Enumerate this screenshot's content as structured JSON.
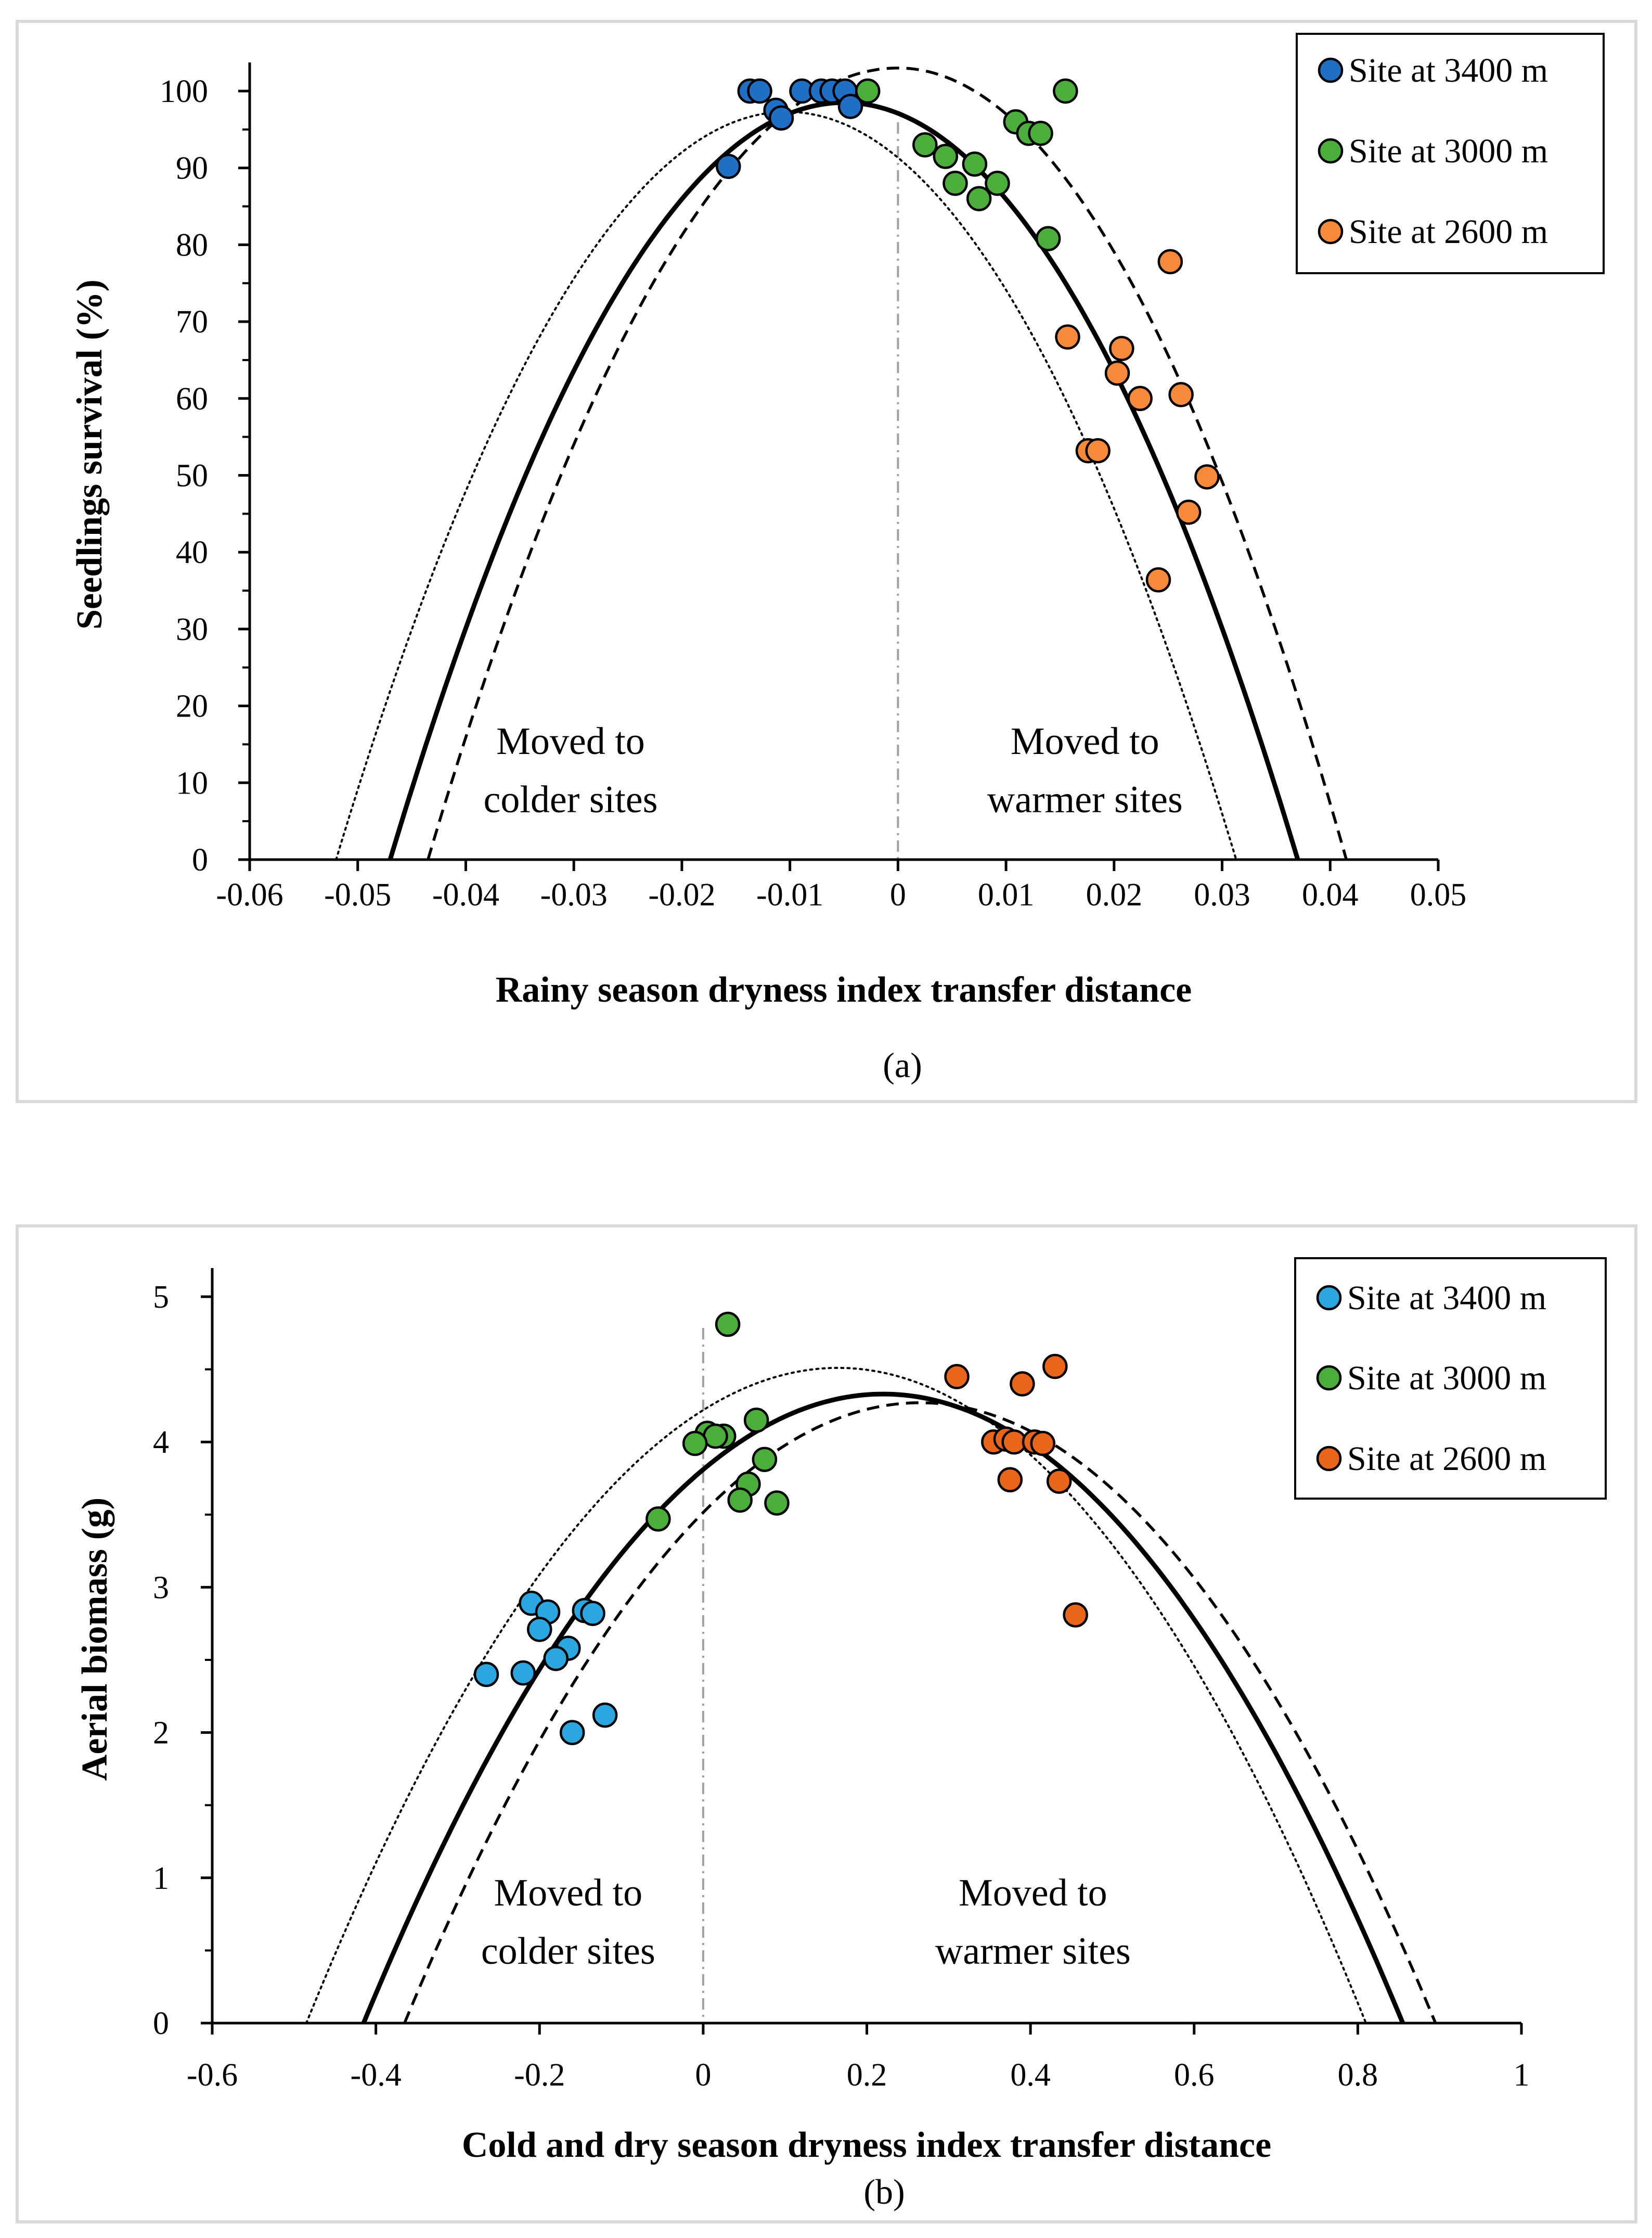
{
  "chart_data": [
    {
      "type": "scatter",
      "panel_label": "(a)",
      "xlabel": "Rainy season dryness index transfer distance",
      "ylabel": "Seedlings survival (%)",
      "xlim": [
        -0.06,
        0.05
      ],
      "ylim": [
        0,
        100
      ],
      "x_ticks": [
        -0.06,
        -0.05,
        -0.04,
        -0.03,
        -0.02,
        -0.01,
        0,
        0.01,
        0.02,
        0.03,
        0.04,
        0.05
      ],
      "x_tick_labels": [
        "-0.06",
        "-0.05",
        "-0.04",
        "-0.03",
        "-0.02",
        "-0.01",
        "0",
        "0.01",
        "0.02",
        "0.03",
        "0.04",
        "0.05"
      ],
      "y_ticks": [
        0,
        10,
        20,
        30,
        40,
        50,
        60,
        70,
        80,
        90,
        100
      ],
      "y_tick_labels": [
        "0",
        "10",
        "20",
        "30",
        "40",
        "50",
        "60",
        "70",
        "80",
        "90",
        "100"
      ],
      "zero_line_x": 0,
      "legend_position": "top-right",
      "annotations": [
        {
          "lines": [
            "Moved to",
            "colder sites"
          ],
          "x": -0.0303,
          "y": 7.5
        },
        {
          "lines": [
            "Moved to",
            "warmer sites"
          ],
          "x": 0.0173,
          "y": 7.5
        }
      ],
      "series": [
        {
          "name": "Site at 3400 m",
          "color": "#1f6fc5",
          "points": [
            [
              -0.0137,
              100
            ],
            [
              -0.0128,
              100
            ],
            [
              -0.0089,
              100
            ],
            [
              -0.0071,
              100
            ],
            [
              -0.0061,
              100
            ],
            [
              -0.0049,
              100
            ],
            [
              -0.0113,
              97.5
            ],
            [
              -0.0108,
              96.5
            ],
            [
              -0.0044,
              98
            ],
            [
              -0.0157,
              90.2
            ]
          ]
        },
        {
          "name": "Site at 3000 m",
          "color": "#4cae3a",
          "points": [
            [
              -0.0028,
              100
            ],
            [
              0.0155,
              100
            ],
            [
              0.0109,
              96
            ],
            [
              0.0121,
              94.5
            ],
            [
              0.0132,
              94.5
            ],
            [
              0.0025,
              93
            ],
            [
              0.0044,
              91.5
            ],
            [
              0.0071,
              90.5
            ],
            [
              0.0053,
              88
            ],
            [
              0.0092,
              88
            ],
            [
              0.0075,
              86
            ],
            [
              0.0139,
              80.8
            ]
          ]
        },
        {
          "name": "Site at 2600 m",
          "color": "#f7893b",
          "points": [
            [
              0.0252,
              77.8
            ],
            [
              0.0157,
              68
            ],
            [
              0.0207,
              66.5
            ],
            [
              0.0203,
              63.3
            ],
            [
              0.0262,
              60.5
            ],
            [
              0.0224,
              60
            ],
            [
              0.0176,
              53.2
            ],
            [
              0.0185,
              53.2
            ],
            [
              0.0286,
              49.8
            ],
            [
              0.0269,
              45.2
            ],
            [
              0.0241,
              36.4
            ]
          ]
        }
      ],
      "fit_curves": [
        {
          "style": "solid",
          "vertex": [
            -0.005,
            98.5
          ],
          "roots": [
            -0.047,
            0.037
          ]
        },
        {
          "style": "dashed",
          "vertex": [
            0.0,
            103
          ],
          "roots": [
            -0.0435,
            0.0415
          ]
        },
        {
          "style": "dotted",
          "vertex": [
            -0.0103,
            97.3
          ],
          "roots": [
            -0.052,
            0.0313
          ]
        }
      ]
    },
    {
      "type": "scatter",
      "panel_label": "(b)",
      "xlabel": "Cold and dry season dryness index transfer distance",
      "ylabel": "Aerial biomass (g)",
      "xlim": [
        -0.6,
        1
      ],
      "ylim": [
        0,
        5
      ],
      "x_ticks": [
        -0.6,
        -0.4,
        -0.2,
        0,
        0.2,
        0.4,
        0.6,
        0.8,
        1
      ],
      "x_tick_labels": [
        "-0.6",
        "-0.4",
        "-0.2",
        "0",
        "0.2",
        "0.4",
        "0.6",
        "0.8",
        "1"
      ],
      "y_ticks": [
        0,
        1,
        2,
        3,
        4,
        5
      ],
      "y_tick_labels": [
        "0",
        "1",
        "2",
        "3",
        "4",
        "5"
      ],
      "zero_line_x": 0,
      "legend_position": "top-right",
      "annotations": [
        {
          "lines": [
            "Moved to",
            "colder sites"
          ],
          "x": -0.165,
          "y": 0.48
        },
        {
          "lines": [
            "Moved to",
            "warmer sites"
          ],
          "x": 0.403,
          "y": 0.48
        }
      ],
      "series": [
        {
          "name": "Site at 3400 m",
          "color": "#2ba6e0",
          "points": [
            [
              -0.21,
              2.89
            ],
            [
              -0.19,
              2.83
            ],
            [
              -0.2,
              2.71
            ],
            [
              -0.145,
              2.84
            ],
            [
              -0.135,
              2.82
            ],
            [
              -0.165,
              2.58
            ],
            [
              -0.18,
              2.51
            ],
            [
              -0.265,
              2.4
            ],
            [
              -0.22,
              2.41
            ],
            [
              -0.16,
              2.0
            ],
            [
              -0.12,
              2.12
            ]
          ]
        },
        {
          "name": "Site at 3000 m",
          "color": "#4cae3a",
          "points": [
            [
              0.03,
              4.81
            ],
            [
              0.065,
              4.15
            ],
            [
              0.005,
              4.06
            ],
            [
              0.025,
              4.04
            ],
            [
              0.015,
              4.04
            ],
            [
              -0.01,
              3.99
            ],
            [
              0.075,
              3.88
            ],
            [
              0.055,
              3.71
            ],
            [
              0.045,
              3.6
            ],
            [
              0.09,
              3.58
            ],
            [
              -0.055,
              3.47
            ]
          ]
        },
        {
          "name": "Site at 2600 m",
          "color": "#e8651a",
          "points": [
            [
              0.43,
              4.52
            ],
            [
              0.31,
              4.45
            ],
            [
              0.39,
              4.4
            ],
            [
              0.355,
              4.0
            ],
            [
              0.37,
              4.02
            ],
            [
              0.38,
              4.0
            ],
            [
              0.405,
              4.0
            ],
            [
              0.415,
              3.99
            ],
            [
              0.375,
              3.74
            ],
            [
              0.435,
              3.73
            ],
            [
              0.455,
              2.81
            ]
          ]
        }
      ],
      "fit_curves": [
        {
          "style": "solid",
          "vertex": [
            0.22,
            4.33
          ],
          "roots": [
            -0.415,
            0.855
          ]
        },
        {
          "style": "dashed",
          "vertex": [
            0.265,
            4.27
          ],
          "roots": [
            -0.365,
            0.895
          ]
        },
        {
          "style": "dotted",
          "vertex": [
            0.165,
            4.51
          ],
          "roots": [
            -0.485,
            0.81
          ]
        }
      ]
    }
  ]
}
